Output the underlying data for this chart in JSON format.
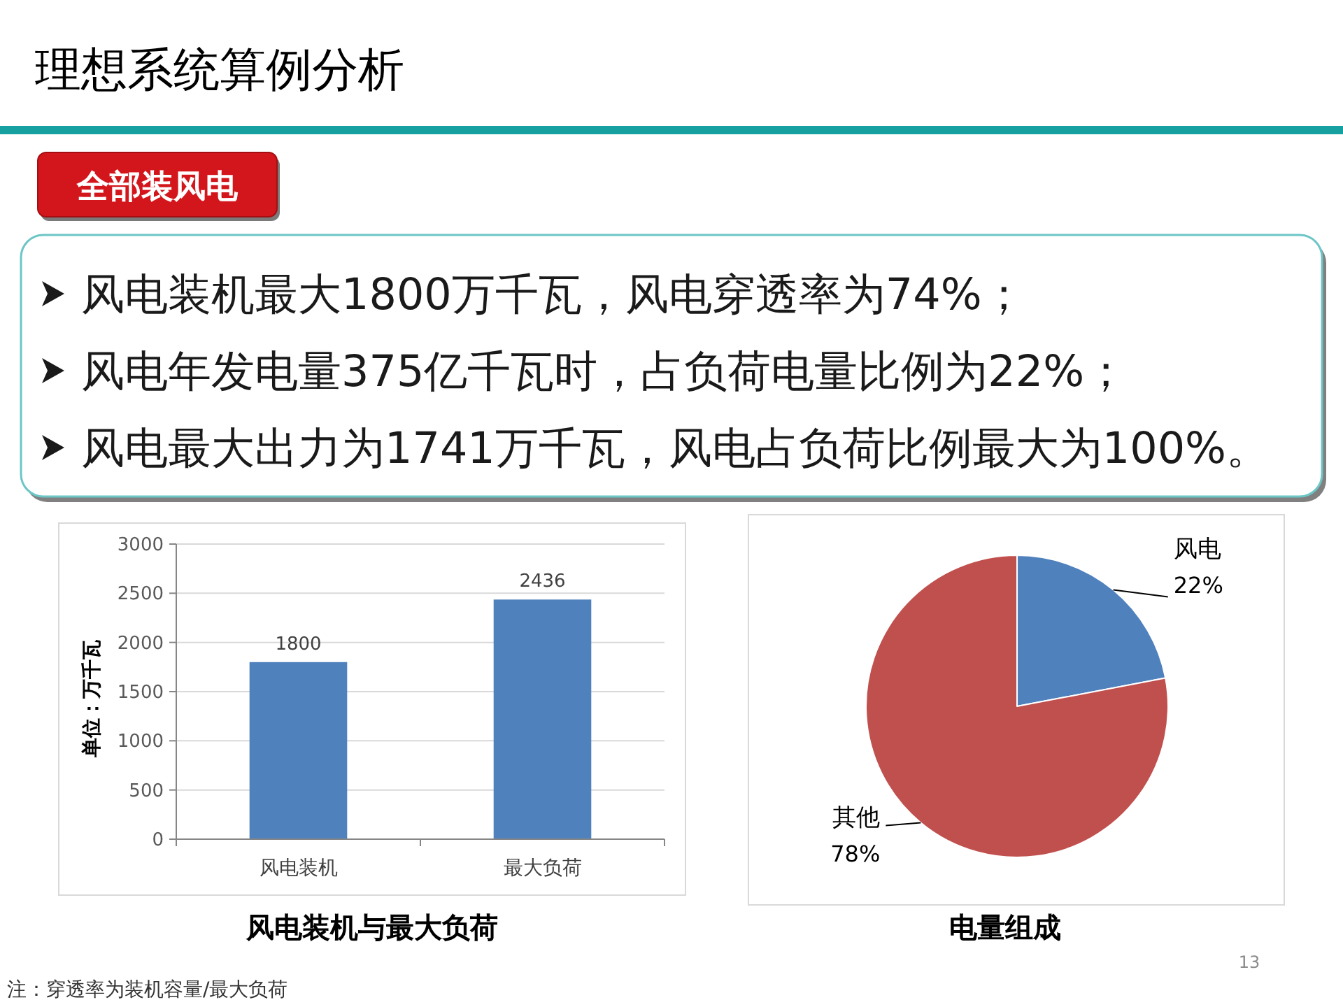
{
  "chart_data": [
    {
      "type": "other",
      "title": "理想系统算例分析",
      "subtitle": "全部装风电",
      "annotations": [
        "风电装机最大1800万千瓦，风电穿透率为74%；",
        "风电年发电量375亿千瓦时，占负荷电量比例为22%；",
        "风电最大出力为1741万千瓦，风电占负荷比例最大为100%。",
        "注：穿透率为装机容量/最大负荷",
        "13"
      ]
    },
    {
      "type": "bar",
      "title": "风电装机与最大负荷",
      "ylabel": "单位：万千瓦",
      "categories": [
        "风电装机",
        "最大负荷"
      ],
      "values": [
        1800,
        2436
      ],
      "color": "#4f81bd",
      "ylim": [
        0,
        3000
      ],
      "yticks": [
        0,
        500,
        1000,
        1500,
        2000,
        2500,
        3000
      ],
      "grid": "y",
      "data_labels": true
    },
    {
      "type": "pie",
      "title": "电量组成",
      "categories": [
        "风电",
        "其他"
      ],
      "values": [
        22,
        78
      ],
      "colors": [
        "#4f81bd",
        "#c0504d"
      ],
      "value_labels": [
        "22%",
        "78%"
      ]
    }
  ]
}
